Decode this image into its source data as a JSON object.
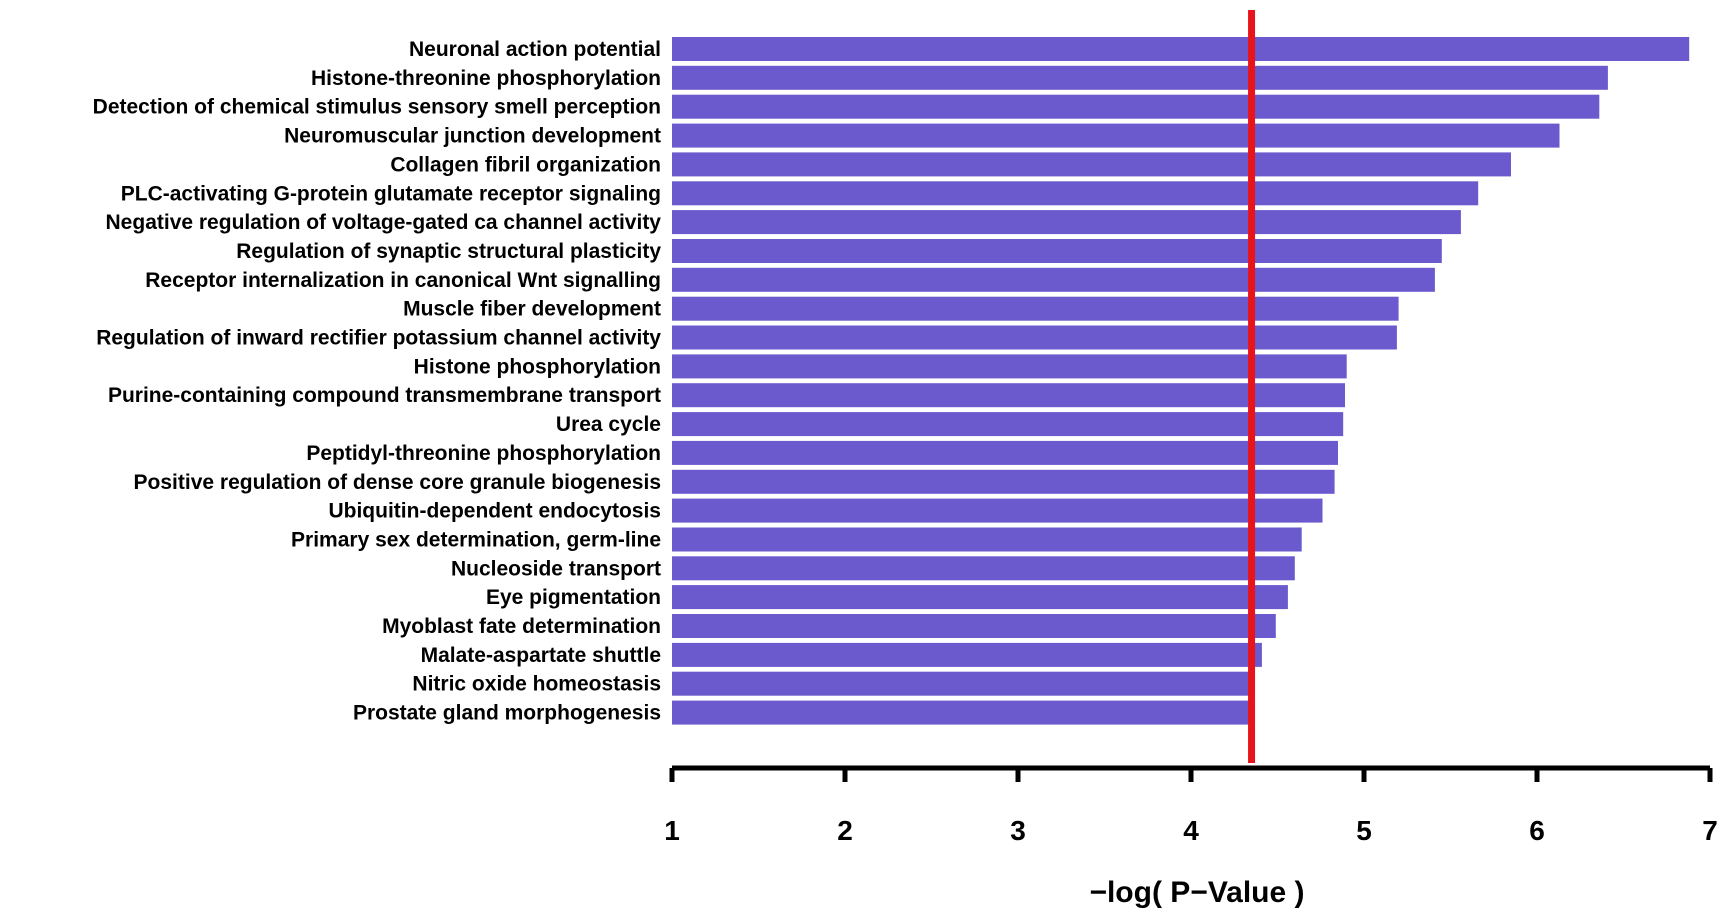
{
  "chart_data": {
    "type": "bar",
    "orientation": "horizontal",
    "title": "",
    "xlabel": "−log( P−Value )",
    "ylabel": "",
    "xlim": [
      1,
      7
    ],
    "xticks": [
      1,
      2,
      3,
      4,
      5,
      6,
      7
    ],
    "grid": false,
    "legend": "none",
    "bar_color": "#6a5acd",
    "threshold_color": "#e8141c",
    "threshold": 4.35,
    "categories": [
      "Neuronal action potential",
      "Histone-threonine phosphorylation",
      "Detection of chemical stimulus sensory smell perception",
      "Neuromuscular junction development",
      "Collagen fibril organization",
      "PLC-activating G-protein glutamate receptor signaling",
      "Negative regulation of voltage-gated ca channel activity",
      "Regulation of synaptic structural plasticity",
      "Receptor internalization in canonical Wnt signalling",
      "Muscle fiber development",
      "Regulation of inward rectifier potassium channel activity",
      "Histone phosphorylation",
      "Purine-containing compound transmembrane transport",
      "Urea cycle",
      "Peptidyl-threonine phosphorylation",
      "Positive regulation of dense core granule biogenesis",
      "Ubiquitin-dependent endocytosis",
      "Primary sex determination, germ-line",
      "Nucleoside transport",
      "Eye pigmentation",
      "Myoblast fate determination",
      "Malate-aspartate shuttle",
      "Nitric oxide homeostasis",
      "Prostate gland morphogenesis"
    ],
    "values": [
      6.88,
      6.41,
      6.36,
      6.13,
      5.85,
      5.66,
      5.56,
      5.45,
      5.41,
      5.2,
      5.19,
      4.9,
      4.89,
      4.88,
      4.85,
      4.83,
      4.76,
      4.64,
      4.6,
      4.56,
      4.49,
      4.41,
      4.35,
      4.35
    ]
  }
}
